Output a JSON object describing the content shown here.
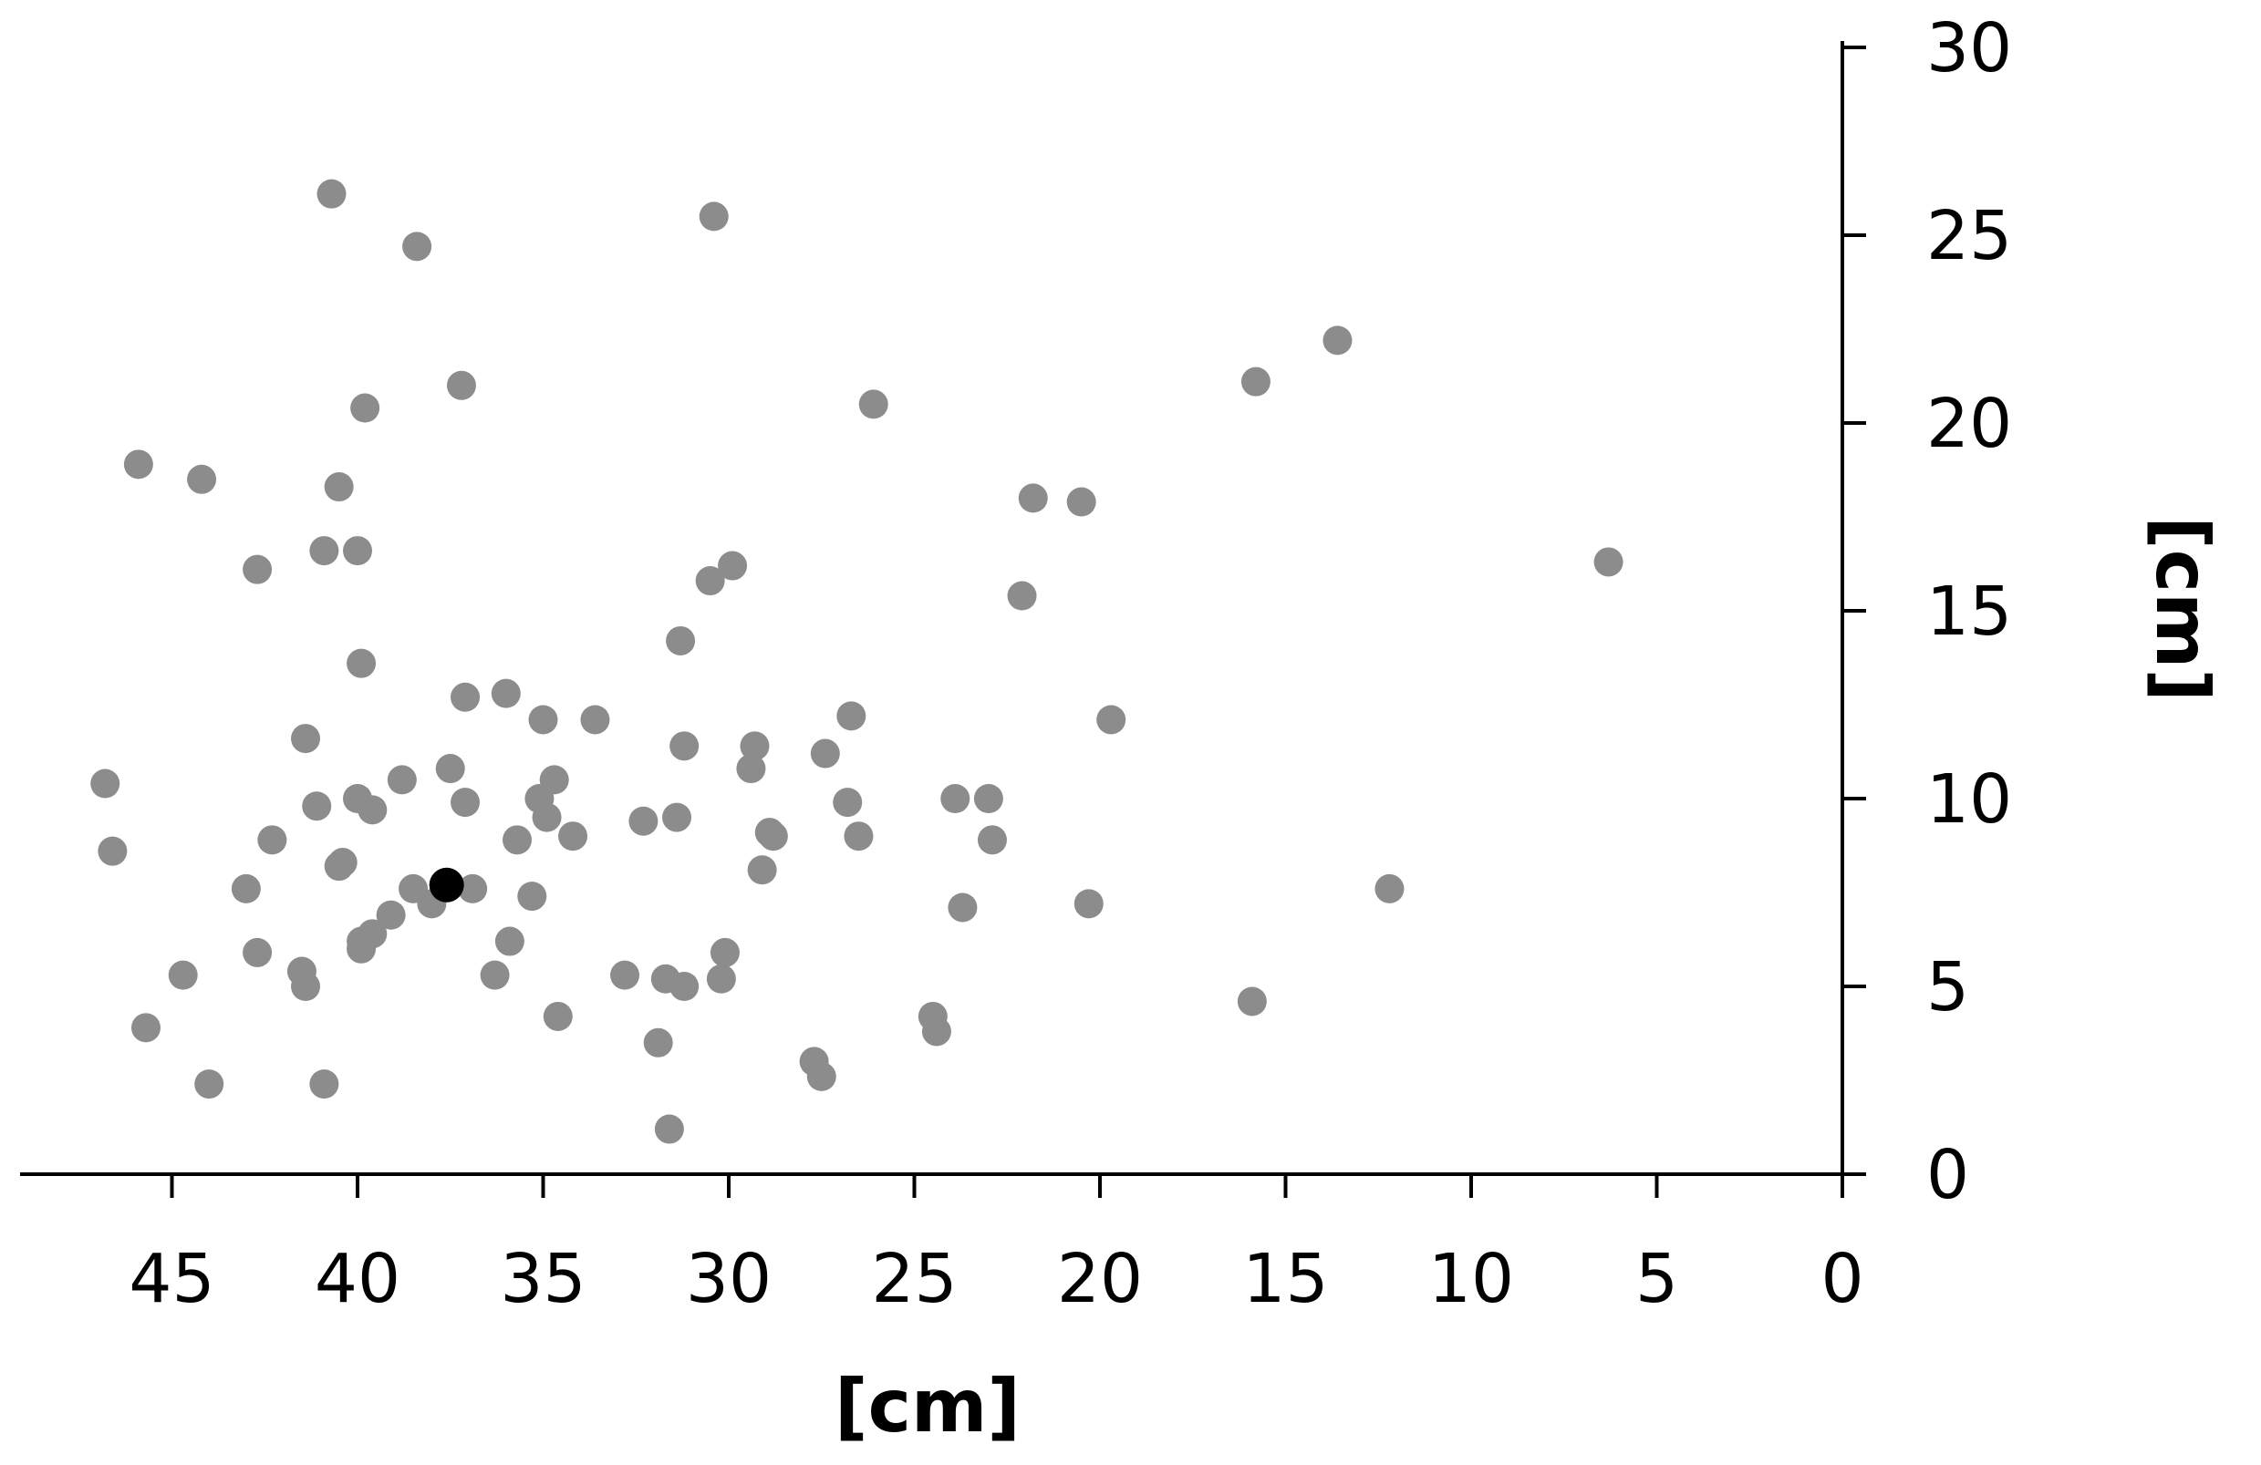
{
  "chart_data": {
    "type": "scatter",
    "title": "",
    "xlabel": "[cm]",
    "ylabel": "[cm]",
    "xlim": [
      0,
      48.5
    ],
    "ylim": [
      0,
      30
    ],
    "x_reversed": true,
    "x_ticks": [
      "45",
      "40",
      "35",
      "30",
      "25",
      "20",
      "15",
      "10",
      "5",
      "0"
    ],
    "y_ticks": [
      "0",
      "5",
      "10",
      "15",
      "20",
      "25",
      "30"
    ],
    "grid": false,
    "legend": "none",
    "colors": {
      "points": "#8c8c8c",
      "highlight": "#000000",
      "axis": "#000000"
    },
    "series": [
      {
        "points": [
          [
            40.7,
            26.1
          ],
          [
            30.4,
            25.5
          ],
          [
            38.4,
            24.7
          ],
          [
            13.6,
            22.2
          ],
          [
            37.2,
            21.0
          ],
          [
            15.8,
            21.1
          ],
          [
            39.8,
            20.4
          ],
          [
            26.1,
            20.5
          ],
          [
            45.9,
            18.9
          ],
          [
            44.2,
            18.5
          ],
          [
            40.5,
            18.3
          ],
          [
            21.8,
            18.0
          ],
          [
            20.5,
            17.9
          ],
          [
            40.9,
            16.6
          ],
          [
            40.0,
            16.6
          ],
          [
            6.3,
            16.3
          ],
          [
            42.7,
            16.1
          ],
          [
            29.9,
            16.2
          ],
          [
            30.5,
            15.8
          ],
          [
            22.1,
            15.4
          ],
          [
            31.3,
            14.2
          ],
          [
            39.9,
            13.6
          ],
          [
            37.1,
            12.7
          ],
          [
            36.0,
            12.8
          ],
          [
            35.0,
            12.1
          ],
          [
            33.6,
            12.1
          ],
          [
            26.7,
            12.2
          ],
          [
            19.7,
            12.1
          ],
          [
            41.4,
            11.6
          ],
          [
            31.2,
            11.4
          ],
          [
            29.3,
            11.4
          ],
          [
            27.4,
            11.2
          ],
          [
            29.4,
            10.8
          ],
          [
            46.8,
            10.4
          ],
          [
            38.8,
            10.5
          ],
          [
            34.7,
            10.5
          ],
          [
            37.5,
            10.8
          ],
          [
            40.0,
            10.0
          ],
          [
            39.6,
            9.7
          ],
          [
            41.1,
            9.8
          ],
          [
            35.1,
            10.0
          ],
          [
            37.1,
            9.9
          ],
          [
            34.9,
            9.5
          ],
          [
            26.8,
            9.9
          ],
          [
            23.9,
            10.0
          ],
          [
            23.0,
            10.0
          ],
          [
            31.4,
            9.5
          ],
          [
            32.3,
            9.4
          ],
          [
            28.9,
            9.1
          ],
          [
            28.8,
            9.0
          ],
          [
            26.5,
            9.0
          ],
          [
            22.9,
            8.9
          ],
          [
            42.3,
            8.9
          ],
          [
            35.7,
            8.9
          ],
          [
            34.2,
            9.0
          ],
          [
            46.6,
            8.6
          ],
          [
            40.4,
            8.3
          ],
          [
            40.5,
            8.2
          ],
          [
            29.1,
            8.1
          ],
          [
            43.0,
            7.6
          ],
          [
            38.5,
            7.6
          ],
          [
            36.9,
            7.6
          ],
          [
            35.3,
            7.4
          ],
          [
            38.0,
            7.2
          ],
          [
            12.2,
            7.6
          ],
          [
            23.7,
            7.1
          ],
          [
            20.3,
            7.2
          ],
          [
            39.1,
            6.9
          ],
          [
            39.6,
            6.4
          ],
          [
            39.9,
            6.2
          ],
          [
            35.9,
            6.2
          ],
          [
            42.7,
            5.9
          ],
          [
            39.9,
            6.0
          ],
          [
            30.1,
            5.9
          ],
          [
            41.5,
            5.4
          ],
          [
            44.7,
            5.3
          ],
          [
            36.3,
            5.3
          ],
          [
            32.8,
            5.3
          ],
          [
            31.7,
            5.2
          ],
          [
            31.2,
            5.0
          ],
          [
            30.2,
            5.2
          ],
          [
            41.4,
            5.0
          ],
          [
            15.9,
            4.6
          ],
          [
            34.6,
            4.2
          ],
          [
            24.5,
            4.2
          ],
          [
            45.7,
            3.9
          ],
          [
            24.4,
            3.8
          ],
          [
            31.9,
            3.5
          ],
          [
            27.7,
            3.0
          ],
          [
            27.5,
            2.6
          ],
          [
            44.0,
            2.4
          ],
          [
            40.9,
            2.4
          ],
          [
            31.6,
            1.2
          ]
        ]
      },
      {
        "points": [
          [
            37.6,
            7.7
          ]
        ]
      }
    ]
  }
}
